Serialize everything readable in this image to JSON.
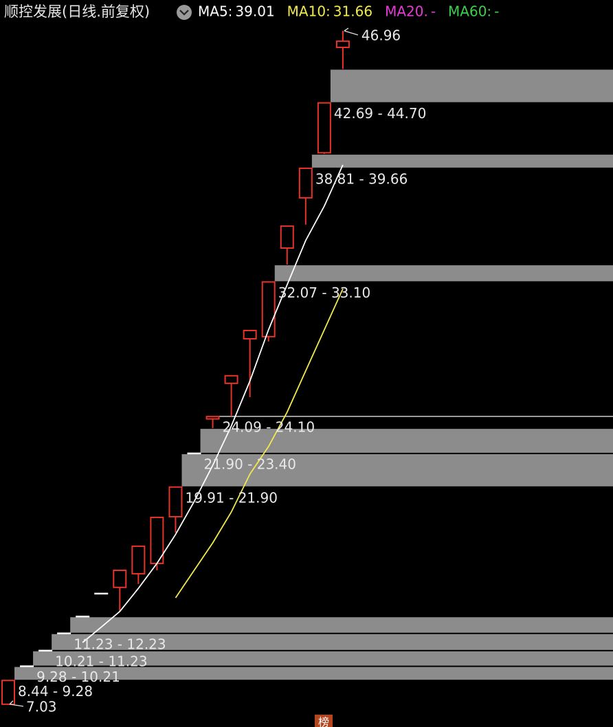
{
  "chart_data": {
    "type": "candlestick",
    "title": "顺控发展(日线.前复权)",
    "open": [
      7.03,
      9.28,
      10.21,
      11.23,
      12.23,
      13.59,
      13.96,
      14.77,
      15.38,
      18.15,
      21.9,
      23.95,
      26.06,
      28.7,
      28.83,
      34.08,
      37.06,
      39.73,
      45.98
    ],
    "high": [
      8.44,
      9.28,
      10.21,
      11.23,
      12.23,
      13.59,
      14.97,
      16.4,
      18.11,
      19.91,
      21.9,
      24.09,
      26.51,
      29.19,
      32.07,
      35.38,
      38.81,
      42.69,
      46.96
    ],
    "low": [
      7.03,
      9.28,
      10.21,
      11.23,
      12.23,
      13.59,
      12.53,
      14.16,
      14.97,
      17.21,
      21.9,
      23.4,
      24.1,
      25.24,
      28.54,
      33.1,
      35.47,
      39.66,
      44.7
    ],
    "close": [
      8.44,
      9.28,
      10.21,
      11.23,
      12.23,
      13.59,
      14.97,
      16.4,
      18.11,
      19.91,
      21.9,
      24.09,
      26.51,
      29.19,
      32.07,
      35.38,
      38.81,
      42.69,
      46.35
    ],
    "up_color": "#e8332a",
    "flat_color": "#ffffff",
    "series": [
      {
        "name": "MA5:",
        "color": "#ffffff",
        "current": 39.01,
        "values": [
          null,
          null,
          null,
          null,
          10.69,
          11.6,
          12.53,
          13.9,
          15.38,
          17.1,
          19.05,
          21.2,
          23.53,
          26.2,
          29.23,
          31.9,
          34.53,
          36.57,
          39.01
        ]
      },
      {
        "name": "MA10:",
        "color": "#f2e94e",
        "current": 31.66,
        "values": [
          null,
          null,
          null,
          null,
          null,
          null,
          null,
          null,
          null,
          13.34,
          14.97,
          16.6,
          18.43,
          20.68,
          22.31,
          24.35,
          26.8,
          29.23,
          31.66
        ]
      },
      {
        "name": "MA20.",
        "color": "#e83ad6",
        "current": "-",
        "values": []
      },
      {
        "name": "MA60:",
        "color": "#3ad04a",
        "current": "-",
        "values": []
      }
    ],
    "gaps": [
      {
        "label": "42.69 - 44.70",
        "low": 42.69,
        "high": 44.7
      },
      {
        "label": "38.81 - 39.66",
        "low": 38.81,
        "high": 39.66
      },
      {
        "label": "32.07 - 33.10",
        "low": 32.07,
        "high": 33.1
      },
      {
        "label": "24.09 - 24.10",
        "low": 24.09,
        "high": 24.1
      },
      {
        "label": "21.90 - 23.40",
        "low": 21.9,
        "high": 23.4
      },
      {
        "label": "19.91 - 21.90",
        "low": 19.91,
        "high": 21.9
      },
      {
        "label": "11.23 - 12.23",
        "low": 11.23,
        "high": 12.23
      },
      {
        "label": "10.21 - 11.23",
        "low": 10.21,
        "high": 11.23
      },
      {
        "label": "9.28 - 10.21",
        "low": 9.28,
        "high": 10.21
      },
      {
        "label": "8.44 - 9.28",
        "low": 8.44,
        "high": 9.28
      }
    ],
    "gap_color": "#8c8c8c",
    "max_label": 46.96,
    "min_label": 7.03,
    "ylim": [
      5.68,
      48.79
    ],
    "badge": "榜"
  }
}
